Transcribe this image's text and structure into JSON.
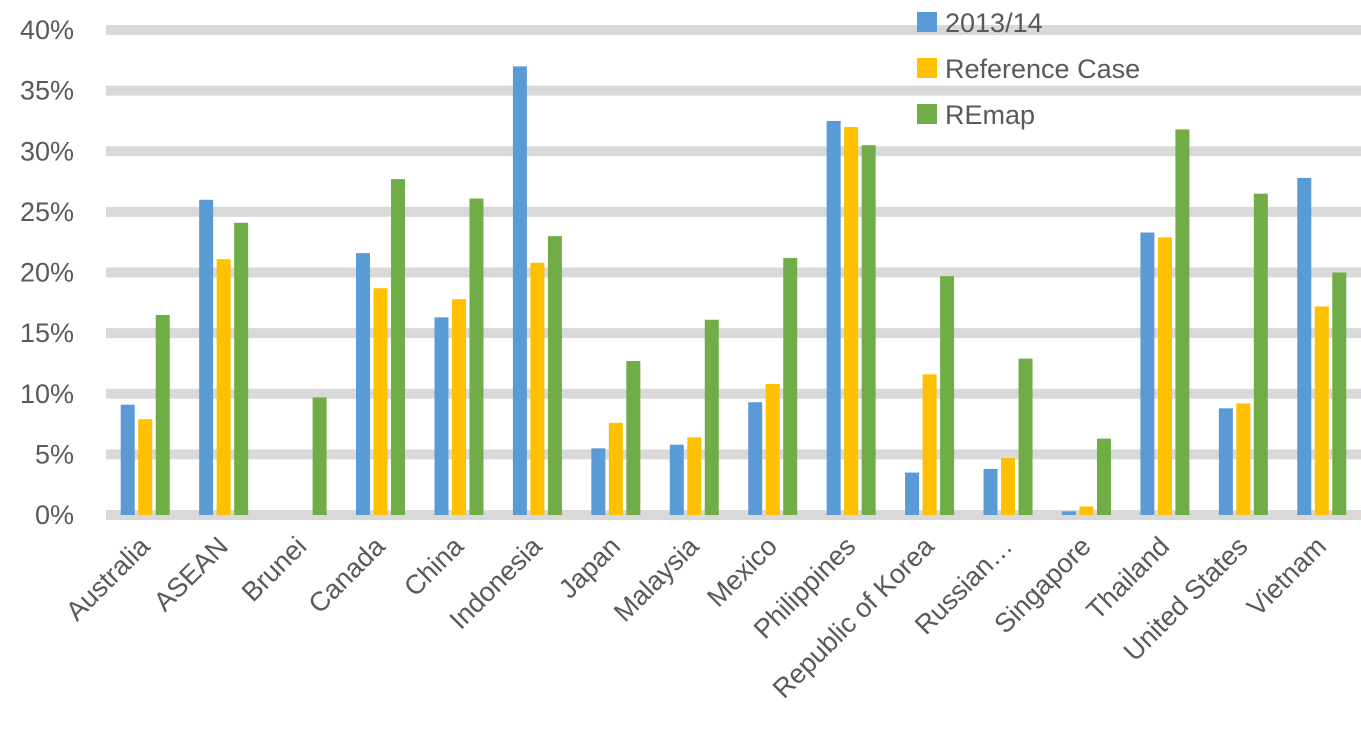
{
  "chart_data": {
    "type": "bar",
    "title": "",
    "xlabel": "",
    "ylabel": "",
    "ylim": [
      0,
      0.4
    ],
    "yticks": [
      0,
      0.05,
      0.1,
      0.15,
      0.2,
      0.25,
      0.3,
      0.35,
      0.4
    ],
    "ytick_labels": [
      "0%",
      "5%",
      "10%",
      "15%",
      "20%",
      "25%",
      "30%",
      "35%",
      "40%"
    ],
    "grid": true,
    "legend_position": "top-right",
    "categories": [
      "Australia",
      "ASEAN",
      "Brunei",
      "Canada",
      "China",
      "Indonesia",
      "Japan",
      "Malaysia",
      "Mexico",
      "Philippines",
      "Republic of Korea",
      "Russian…",
      "Singapore",
      "Thailand",
      "United States",
      "Vietnam"
    ],
    "series": [
      {
        "name": "2013/14",
        "color": "#5b9bd5",
        "values": [
          0.091,
          0.26,
          0.0,
          0.216,
          0.163,
          0.37,
          0.055,
          0.058,
          0.093,
          0.325,
          0.035,
          0.038,
          0.003,
          0.233,
          0.088,
          0.278
        ]
      },
      {
        "name": "Reference Case",
        "color": "#ffc000",
        "values": [
          0.079,
          0.211,
          0.0,
          0.187,
          0.178,
          0.208,
          0.076,
          0.064,
          0.108,
          0.32,
          0.116,
          0.047,
          0.007,
          0.229,
          0.092,
          0.172
        ]
      },
      {
        "name": "REmap",
        "color": "#70ad47",
        "values": [
          0.165,
          0.241,
          0.097,
          0.277,
          0.261,
          0.23,
          0.127,
          0.161,
          0.212,
          0.305,
          0.197,
          0.129,
          0.063,
          0.318,
          0.265,
          0.2
        ]
      }
    ]
  }
}
